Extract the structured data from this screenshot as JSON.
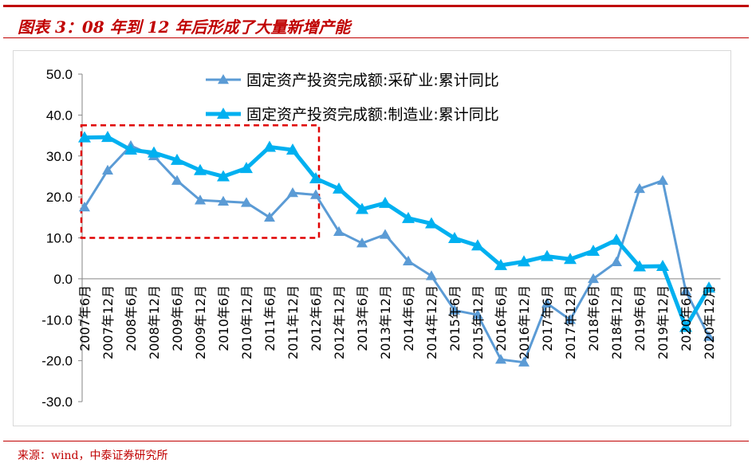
{
  "header": {
    "title": "图表 3：08 年到 12 年后形成了大量新增产能"
  },
  "footer": {
    "source": "来源：wind，中泰证券研究所"
  },
  "colors": {
    "mining": "#5b9bd5",
    "manufacturing": "#00b0f0",
    "highlight": "#e00000",
    "accent": "#c00000"
  },
  "chart_data": {
    "type": "line",
    "title": "",
    "xlabel": "",
    "ylabel": "",
    "ylim": [
      -30,
      50
    ],
    "yticks": [
      50,
      40,
      30,
      20,
      10,
      0,
      -10,
      -20,
      -30
    ],
    "ytick_labels": [
      "50.0",
      "40.0",
      "30.0",
      "20.0",
      "10.0",
      "0.0",
      "-10.0",
      "-20.0",
      "-30.0"
    ],
    "grid": false,
    "legend_position": "top",
    "categories": [
      "2007年6月",
      "2007年12月",
      "2008年6月",
      "2008年12月",
      "2009年6月",
      "2009年12月",
      "2010年6月",
      "2010年12月",
      "2011年6月",
      "2011年12月",
      "2012年6月",
      "2012年12月",
      "2013年6月",
      "2013年12月",
      "2014年6月",
      "2014年12月",
      "2015年6月",
      "2015年12月",
      "2016年6月",
      "2016年12月",
      "2017年6月",
      "2017年12月",
      "2018年6月",
      "2018年12月",
      "2019年6月",
      "2019年12月",
      "2020年6月",
      "2020年12月"
    ],
    "series": [
      {
        "name": "固定资产投资完成额:采矿业:累计同比",
        "values": [
          17.5,
          26.5,
          32.5,
          30.0,
          24.0,
          19.2,
          18.9,
          18.6,
          15.0,
          21.0,
          20.5,
          11.5,
          8.7,
          10.8,
          4.3,
          0.7,
          -7.7,
          -8.8,
          -19.7,
          -20.4,
          -6.0,
          -10.0,
          0.0,
          4.1,
          22.0,
          24.0,
          -3.0,
          -14.1
        ]
      },
      {
        "name": "固定资产投资完成额:制造业:累计同比",
        "values": [
          34.5,
          34.6,
          31.5,
          30.8,
          29.0,
          26.5,
          25.0,
          27.0,
          32.2,
          31.5,
          24.5,
          22.0,
          17.0,
          18.5,
          14.8,
          13.5,
          9.9,
          8.1,
          3.3,
          4.2,
          5.5,
          4.8,
          6.8,
          9.5,
          3.0,
          3.1,
          -11.8,
          -2.2
        ]
      }
    ],
    "annotations": [
      {
        "type": "dashed-box",
        "from_category": "2007年6月",
        "to_category": "2012年6月",
        "y_range": [
          10,
          37.5
        ]
      }
    ]
  }
}
